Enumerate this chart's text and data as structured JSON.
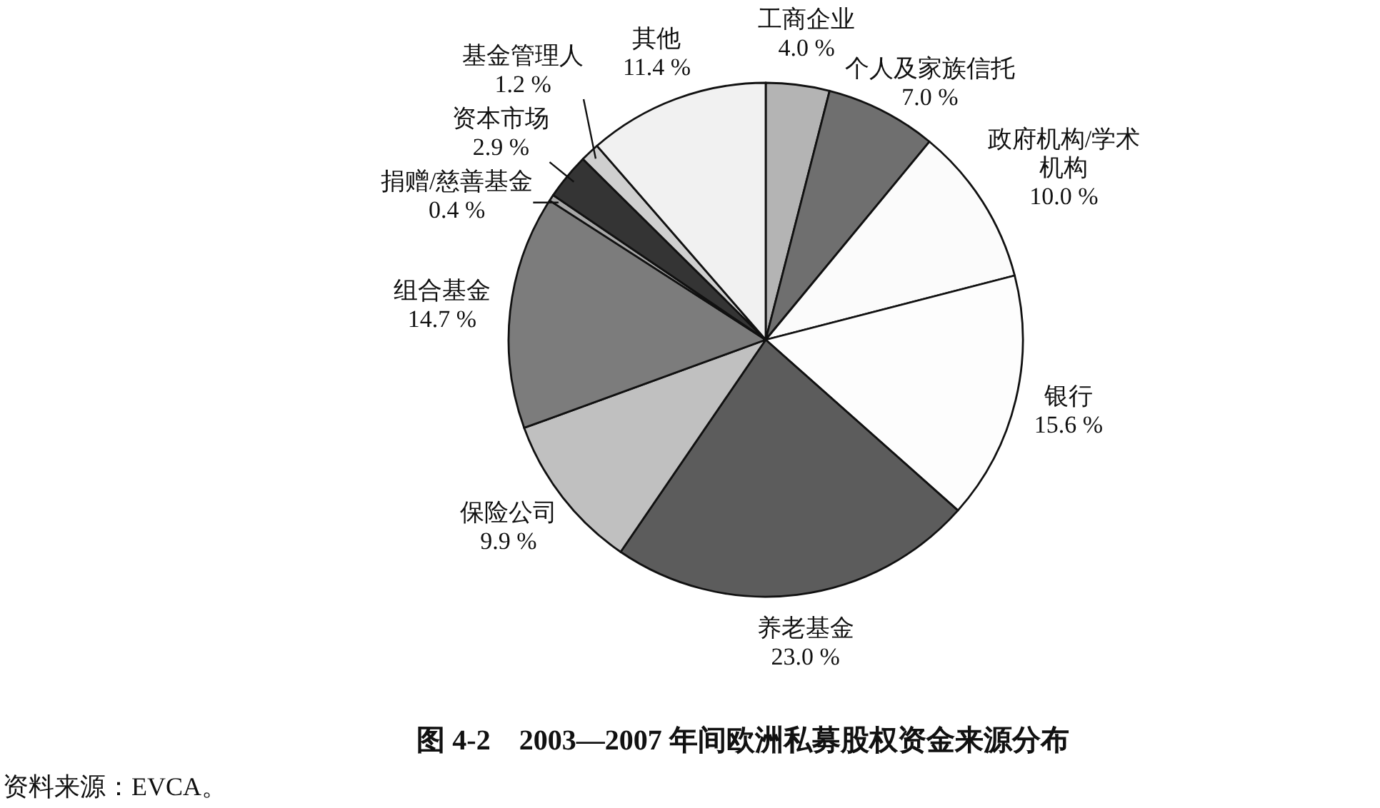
{
  "chart_data": {
    "type": "pie",
    "title": "图 4-2　2003—2007 年间欧洲私募股权资金来源分布",
    "categories": [
      "工商企业",
      "个人及家族信托",
      "政府机构/学术机构",
      "银行",
      "养老基金",
      "保险公司",
      "组合基金",
      "捐赠/慈善基金",
      "资本市场",
      "基金管理人",
      "其他"
    ],
    "values": [
      4.0,
      7.0,
      10.0,
      15.6,
      23.0,
      9.9,
      14.7,
      0.4,
      2.9,
      1.2,
      11.4
    ],
    "value_labels": [
      "4.0 %",
      "7.0 %",
      "10.0 %",
      "15.6 %",
      "23.0 %",
      "9.9 %",
      "14.7 %",
      "0.4 %",
      "2.9 %",
      "1.2 %",
      "11.4 %"
    ],
    "colors": [
      "#b4b4b4",
      "#6f6f6f",
      "#fbfbfb",
      "#fdfdfd",
      "#5c5c5c",
      "#c0c0c0",
      "#7c7c7c",
      "#a8a8a8",
      "#343434",
      "#cfcfcf",
      "#f1f1f1"
    ],
    "annotations": [
      "资料来源：EVCA。"
    ]
  }
}
